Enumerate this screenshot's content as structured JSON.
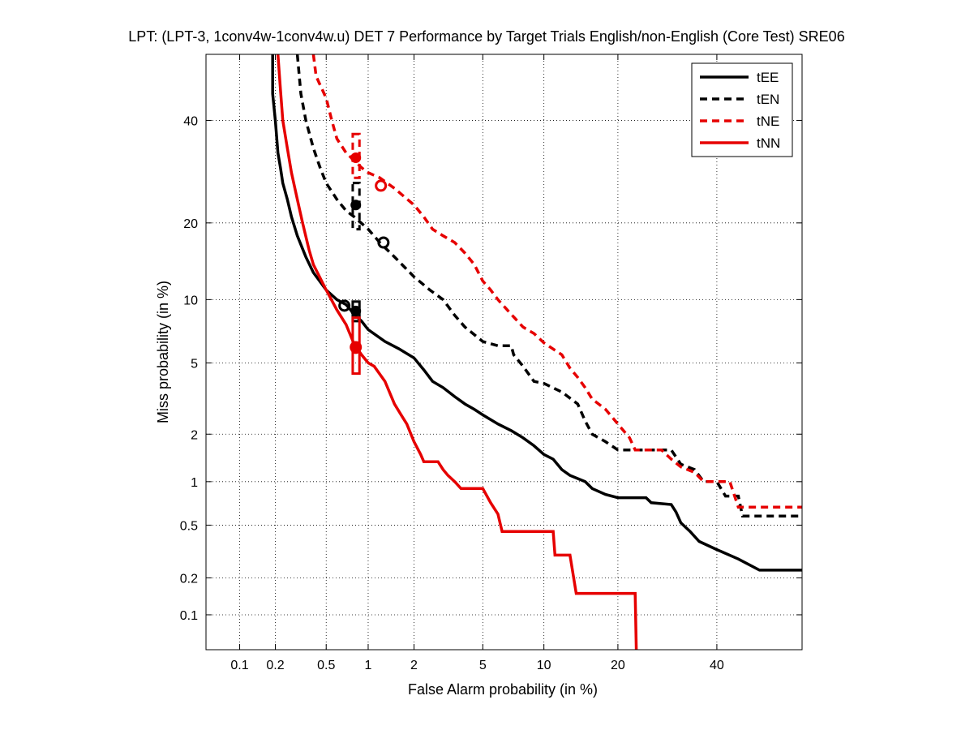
{
  "chart_data": {
    "type": "line",
    "title": "LPT: (LPT-3, 1conv4w-1conv4w.u) DET 7 Performance by Target Trials English/non-English (Core Test) SRE06",
    "xlabel": "False Alarm probability (in %)",
    "ylabel": "Miss probability (in %)",
    "xscale": "normal-deviate",
    "yscale": "normal-deviate",
    "xlim": [
      0.05,
      60
    ],
    "ylim": [
      0.05,
      55
    ],
    "grid": true,
    "legend_position": "top-right",
    "x_ticks": [
      0.1,
      0.2,
      0.5,
      1,
      2,
      5,
      10,
      20,
      40
    ],
    "x_tick_labels": [
      "0.1",
      "0.2",
      "0.5",
      "1",
      "2",
      "5",
      "10",
      "20",
      "40"
    ],
    "y_ticks": [
      0.1,
      0.2,
      0.5,
      1,
      2,
      5,
      10,
      20,
      40
    ],
    "y_tick_labels": [
      "0.1",
      "0.2",
      "0.5",
      "1",
      "2",
      "5",
      "10",
      "20",
      "40"
    ],
    "series": [
      {
        "name": "tEE",
        "color": "#000000",
        "dash": "solid",
        "points": [
          [
            0.19,
            55
          ],
          [
            0.19,
            46
          ],
          [
            0.2,
            40
          ],
          [
            0.21,
            33
          ],
          [
            0.22,
            30
          ],
          [
            0.23,
            27
          ],
          [
            0.25,
            24
          ],
          [
            0.27,
            21
          ],
          [
            0.3,
            18
          ],
          [
            0.35,
            15
          ],
          [
            0.4,
            13
          ],
          [
            0.5,
            11
          ],
          [
            0.6,
            10
          ],
          [
            0.7,
            9.5
          ],
          [
            0.8,
            8.6
          ],
          [
            0.9,
            8
          ],
          [
            1.0,
            7.3
          ],
          [
            1.3,
            6.4
          ],
          [
            1.6,
            5.9
          ],
          [
            2.0,
            5.3
          ],
          [
            2.3,
            4.6
          ],
          [
            2.6,
            4.0
          ],
          [
            3.0,
            3.7
          ],
          [
            3.5,
            3.3
          ],
          [
            4.0,
            3.0
          ],
          [
            4.5,
            2.8
          ],
          [
            5.0,
            2.6
          ],
          [
            6.0,
            2.3
          ],
          [
            7.0,
            2.1
          ],
          [
            8.0,
            1.9
          ],
          [
            9.0,
            1.7
          ],
          [
            10,
            1.5
          ],
          [
            11,
            1.4
          ],
          [
            12,
            1.2
          ],
          [
            13,
            1.1
          ],
          [
            15,
            1.0
          ],
          [
            16,
            0.9
          ],
          [
            18,
            0.82
          ],
          [
            20,
            0.78
          ],
          [
            25,
            0.78
          ],
          [
            26,
            0.72
          ],
          [
            30,
            0.7
          ],
          [
            31,
            0.62
          ],
          [
            32,
            0.52
          ],
          [
            34,
            0.45
          ],
          [
            36,
            0.38
          ],
          [
            40,
            0.33
          ],
          [
            45,
            0.28
          ],
          [
            50,
            0.23
          ],
          [
            60,
            0.23
          ]
        ],
        "actual_marker": [
          0.68,
          9.4
        ],
        "min_marker": [
          0.82,
          8.9
        ],
        "ci_box": [
          0.78,
          0.87,
          8.0,
          9.8
        ]
      },
      {
        "name": "tEN",
        "color": "#000000",
        "dash": "dashed",
        "points": [
          [
            0.3,
            55
          ],
          [
            0.32,
            46
          ],
          [
            0.35,
            40
          ],
          [
            0.4,
            34
          ],
          [
            0.45,
            30
          ],
          [
            0.5,
            27
          ],
          [
            0.6,
            24
          ],
          [
            0.7,
            22
          ],
          [
            0.8,
            21
          ],
          [
            1.0,
            19
          ],
          [
            1.2,
            17
          ],
          [
            1.5,
            15
          ],
          [
            2.0,
            12.5
          ],
          [
            2.5,
            11
          ],
          [
            3.0,
            10
          ],
          [
            3.5,
            8.5
          ],
          [
            4.0,
            7.5
          ],
          [
            5.0,
            6.4
          ],
          [
            6.0,
            6.1
          ],
          [
            7.0,
            6.1
          ],
          [
            7.2,
            5.5
          ],
          [
            8.0,
            4.8
          ],
          [
            9.0,
            4.0
          ],
          [
            10,
            3.9
          ],
          [
            12,
            3.5
          ],
          [
            14,
            3.0
          ],
          [
            15,
            2.4
          ],
          [
            16,
            2.0
          ],
          [
            18,
            1.8
          ],
          [
            20,
            1.6
          ],
          [
            25,
            1.6
          ],
          [
            30,
            1.6
          ],
          [
            32,
            1.3
          ],
          [
            35,
            1.2
          ],
          [
            37,
            1.0
          ],
          [
            40,
            1.0
          ],
          [
            42,
            0.8
          ],
          [
            45,
            0.8
          ],
          [
            46,
            0.58
          ],
          [
            60,
            0.58
          ]
        ],
        "actual_marker": [
          1.27,
          17
        ],
        "min_marker": [
          0.82,
          23
        ],
        "ci_box": [
          0.78,
          0.87,
          19,
          27
        ]
      },
      {
        "name": "tNE",
        "color": "#e60000",
        "dash": "dashed",
        "points": [
          [
            0.4,
            55
          ],
          [
            0.42,
            50
          ],
          [
            0.5,
            45
          ],
          [
            0.55,
            40
          ],
          [
            0.6,
            36
          ],
          [
            0.7,
            33
          ],
          [
            0.9,
            30
          ],
          [
            1.0,
            29
          ],
          [
            1.2,
            28
          ],
          [
            1.5,
            26
          ],
          [
            2.0,
            23
          ],
          [
            2.3,
            21
          ],
          [
            2.6,
            19
          ],
          [
            3.0,
            18
          ],
          [
            3.5,
            17
          ],
          [
            4.0,
            15.5
          ],
          [
            4.5,
            14
          ],
          [
            5.0,
            12
          ],
          [
            5.5,
            11
          ],
          [
            6.0,
            10
          ],
          [
            7.0,
            8.6
          ],
          [
            8.0,
            7.5
          ],
          [
            9.0,
            7.0
          ],
          [
            10,
            6.3
          ],
          [
            12,
            5.5
          ],
          [
            13,
            4.7
          ],
          [
            14,
            4.2
          ],
          [
            15,
            3.7
          ],
          [
            16,
            3.2
          ],
          [
            18,
            2.8
          ],
          [
            20,
            2.3
          ],
          [
            22,
            1.9
          ],
          [
            23,
            1.6
          ],
          [
            28,
            1.6
          ],
          [
            30,
            1.4
          ],
          [
            32,
            1.25
          ],
          [
            35,
            1.15
          ],
          [
            37,
            1.0
          ],
          [
            43,
            1.0
          ],
          [
            45,
            0.67
          ],
          [
            60,
            0.67
          ]
        ],
        "actual_marker": [
          1.22,
          26.5
        ],
        "min_marker": [
          0.82,
          32
        ],
        "ci_box": [
          0.78,
          0.87,
          28,
          37
        ]
      },
      {
        "name": "tNN",
        "color": "#e60000",
        "dash": "solid",
        "points": [
          [
            0.21,
            55
          ],
          [
            0.22,
            47
          ],
          [
            0.23,
            40
          ],
          [
            0.25,
            34
          ],
          [
            0.27,
            29
          ],
          [
            0.3,
            24
          ],
          [
            0.33,
            20
          ],
          [
            0.37,
            16
          ],
          [
            0.4,
            14
          ],
          [
            0.5,
            11
          ],
          [
            0.6,
            9
          ],
          [
            0.7,
            7.7
          ],
          [
            0.8,
            6.2
          ],
          [
            0.9,
            5.5
          ],
          [
            1.0,
            5.0
          ],
          [
            1.1,
            4.8
          ],
          [
            1.3,
            4.0
          ],
          [
            1.5,
            3.0
          ],
          [
            1.7,
            2.5
          ],
          [
            1.8,
            2.3
          ],
          [
            2.0,
            1.8
          ],
          [
            2.2,
            1.5
          ],
          [
            2.3,
            1.35
          ],
          [
            2.8,
            1.35
          ],
          [
            3.0,
            1.2
          ],
          [
            3.2,
            1.1
          ],
          [
            3.5,
            1.0
          ],
          [
            3.8,
            0.9
          ],
          [
            4.5,
            0.9
          ],
          [
            5.0,
            0.9
          ],
          [
            5.5,
            0.72
          ],
          [
            6.0,
            0.6
          ],
          [
            6.3,
            0.45
          ],
          [
            7,
            0.45
          ],
          [
            11,
            0.45
          ],
          [
            11.2,
            0.3
          ],
          [
            13,
            0.3
          ],
          [
            13.8,
            0.15
          ],
          [
            18,
            0.15
          ],
          [
            23,
            0.15
          ],
          [
            23.2,
            0.05
          ]
        ],
        "actual_marker": [
          0.82,
          6.0
        ],
        "min_marker": [
          0.82,
          5.9
        ],
        "ci_box": [
          0.78,
          0.87,
          4.4,
          8.3
        ]
      }
    ]
  }
}
